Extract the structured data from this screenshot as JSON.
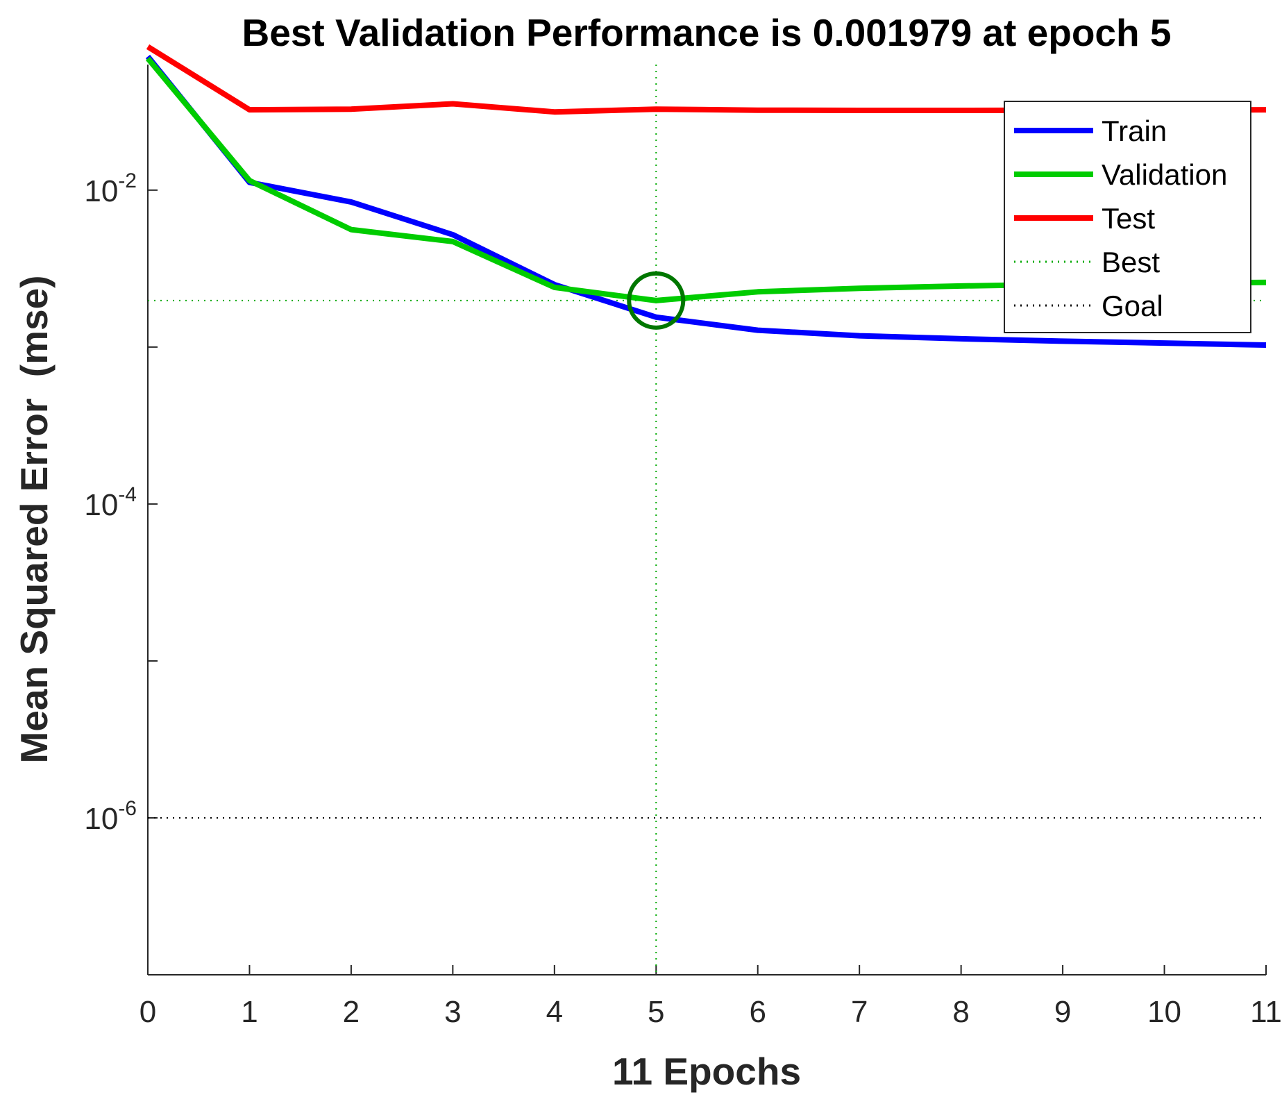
{
  "chart_data": {
    "type": "line",
    "title": "Best Validation Performance is 0.001979 at epoch 5",
    "xlabel": "11 Epochs",
    "ylabel": "Mean Squared Error  (mse)",
    "yscale": "log",
    "xlim": [
      0,
      11
    ],
    "ylim_log10": [
      -7,
      -1.2
    ],
    "x_ticks": [
      "0",
      "1",
      "2",
      "3",
      "4",
      "5",
      "6",
      "7",
      "8",
      "9",
      "10",
      "11"
    ],
    "y_ticks": [
      {
        "base": "10",
        "exp": "-2",
        "value": 0.01
      },
      {
        "base": "10",
        "exp": "-4",
        "value": 0.0001
      },
      {
        "base": "10",
        "exp": "-6",
        "value": 1e-06
      }
    ],
    "x": [
      0,
      1,
      2,
      3,
      4,
      5,
      6,
      7,
      8,
      9,
      10,
      11
    ],
    "series": [
      {
        "name": "Train",
        "color": "#0000ff",
        "style": "solid",
        "values": [
          0.071,
          0.0112,
          0.0084,
          0.0052,
          0.0025,
          0.00155,
          0.00128,
          0.00118,
          0.00113,
          0.00109,
          0.00106,
          0.00103
        ]
      },
      {
        "name": "Validation",
        "color": "#00cc00",
        "style": "solid",
        "values": [
          0.069,
          0.0115,
          0.0056,
          0.0047,
          0.0024,
          0.001979,
          0.00225,
          0.00237,
          0.00245,
          0.00251,
          0.00255,
          0.00258
        ]
      },
      {
        "name": "Test",
        "color": "#ff0000",
        "style": "solid",
        "values": [
          0.082,
          0.0325,
          0.0328,
          0.0355,
          0.0315,
          0.0328,
          0.0323,
          0.0322,
          0.0322,
          0.0323,
          0.0324,
          0.0325
        ]
      }
    ],
    "best": {
      "label": "Best",
      "epoch": 5,
      "value": 0.001979,
      "color": "#00aa00",
      "style": "dotted"
    },
    "goal": {
      "label": "Goal",
      "value": 1e-06,
      "color": "#000000",
      "style": "dotted"
    },
    "legend": {
      "placement": "top-right",
      "entries": [
        "Train",
        "Validation",
        "Test",
        "Best",
        "Goal"
      ]
    }
  }
}
